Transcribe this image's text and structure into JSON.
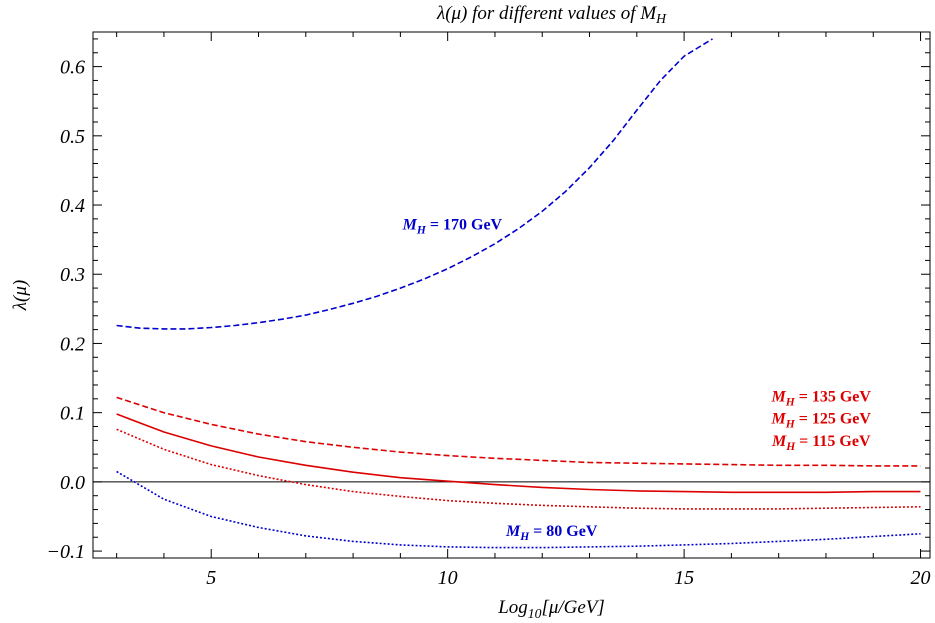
{
  "chart_data": {
    "type": "line",
    "title": "λ(μ) for different values of M_H",
    "xlabel": "Log10[μ/GeV]",
    "ylabel": "λ(μ)",
    "xlim": [
      2.5,
      20.2
    ],
    "ylim": [
      -0.11,
      0.65
    ],
    "xticks": [
      5,
      10,
      15,
      20
    ],
    "xtick_labels": [
      "5",
      "10",
      "15",
      "20"
    ],
    "yticks": [
      -0.1,
      0.0,
      0.1,
      0.2,
      0.3,
      0.4,
      0.5,
      0.6
    ],
    "ytick_labels": [
      "−0.1",
      "0.0",
      "0.1",
      "0.2",
      "0.3",
      "0.4",
      "0.5",
      "0.6"
    ],
    "frame": true,
    "grid": false,
    "series": [
      {
        "name": "M_H = 170 GeV",
        "color": "#0000cc",
        "dash": "dashed",
        "x": [
          3.0,
          3.5,
          4.0,
          4.5,
          5.0,
          5.5,
          6.0,
          6.5,
          7.0,
          7.5,
          8.0,
          8.5,
          9.0,
          9.5,
          10.0,
          10.5,
          11.0,
          11.5,
          12.0,
          12.5,
          13.0,
          13.5,
          14.0,
          14.5,
          15.0,
          15.6
        ],
        "values": [
          0.226,
          0.222,
          0.221,
          0.221,
          0.223,
          0.226,
          0.23,
          0.235,
          0.241,
          0.249,
          0.258,
          0.268,
          0.28,
          0.293,
          0.308,
          0.325,
          0.344,
          0.366,
          0.391,
          0.42,
          0.454,
          0.493,
          0.537,
          0.58,
          0.615,
          0.64
        ]
      },
      {
        "name": "M_H = 135 GeV",
        "color": "#dd0000",
        "dash": "dashed",
        "x": [
          3.0,
          4.0,
          5.0,
          6.0,
          7.0,
          8.0,
          9.0,
          10.0,
          11.0,
          12.0,
          13.0,
          14.0,
          15.0,
          16.0,
          17.0,
          18.0,
          19.0,
          20.0
        ],
        "values": [
          0.122,
          0.1,
          0.083,
          0.069,
          0.058,
          0.05,
          0.043,
          0.038,
          0.034,
          0.031,
          0.028,
          0.027,
          0.026,
          0.025,
          0.024,
          0.024,
          0.023,
          0.023
        ]
      },
      {
        "name": "M_H = 125 GeV",
        "color": "#dd0000",
        "dash": "solid",
        "x": [
          3.0,
          4.0,
          5.0,
          6.0,
          7.0,
          8.0,
          9.0,
          10.0,
          11.0,
          12.0,
          13.0,
          14.0,
          15.0,
          16.0,
          17.0,
          18.0,
          19.0,
          20.0
        ],
        "values": [
          0.098,
          0.072,
          0.052,
          0.036,
          0.024,
          0.014,
          0.006,
          0.001,
          -0.004,
          -0.008,
          -0.011,
          -0.013,
          -0.014,
          -0.015,
          -0.015,
          -0.015,
          -0.014,
          -0.014
        ]
      },
      {
        "name": "M_H = 115 GeV",
        "color": "#dd0000",
        "dash": "dotted",
        "x": [
          3.0,
          4.0,
          5.0,
          6.0,
          7.0,
          8.0,
          9.0,
          10.0,
          11.0,
          12.0,
          13.0,
          14.0,
          15.0,
          16.0,
          17.0,
          18.0,
          19.0,
          20.0
        ],
        "values": [
          0.076,
          0.047,
          0.025,
          0.009,
          -0.004,
          -0.014,
          -0.021,
          -0.027,
          -0.031,
          -0.034,
          -0.036,
          -0.038,
          -0.039,
          -0.039,
          -0.039,
          -0.038,
          -0.037,
          -0.036
        ]
      },
      {
        "name": "M_H = 80 GeV",
        "color": "#0000cc",
        "dash": "dotted",
        "x": [
          3.0,
          4.0,
          5.0,
          6.0,
          7.0,
          8.0,
          9.0,
          10.0,
          11.0,
          12.0,
          13.0,
          14.0,
          15.0,
          16.0,
          17.0,
          18.0,
          19.0,
          20.0
        ],
        "values": [
          0.015,
          -0.025,
          -0.05,
          -0.066,
          -0.078,
          -0.086,
          -0.091,
          -0.094,
          -0.095,
          -0.095,
          -0.094,
          -0.093,
          -0.091,
          -0.089,
          -0.086,
          -0.083,
          -0.079,
          -0.075
        ]
      }
    ],
    "annotations": [
      {
        "text": "M_H = 170 GeV",
        "color": "#0000cc",
        "x": 10.1,
        "y": 0.365
      },
      {
        "text": "M_H = 135 GeV",
        "color": "#dd0000",
        "x": 17.9,
        "y": 0.116
      },
      {
        "text": "M_H = 125 GeV",
        "color": "#dd0000",
        "x": 17.9,
        "y": 0.084
      },
      {
        "text": "M_H = 115 GeV",
        "color": "#dd0000",
        "x": 17.9,
        "y": 0.052
      },
      {
        "text": "M_H = 80 GeV",
        "color": "#0000cc",
        "x": 12.2,
        "y": -0.078
      }
    ]
  }
}
